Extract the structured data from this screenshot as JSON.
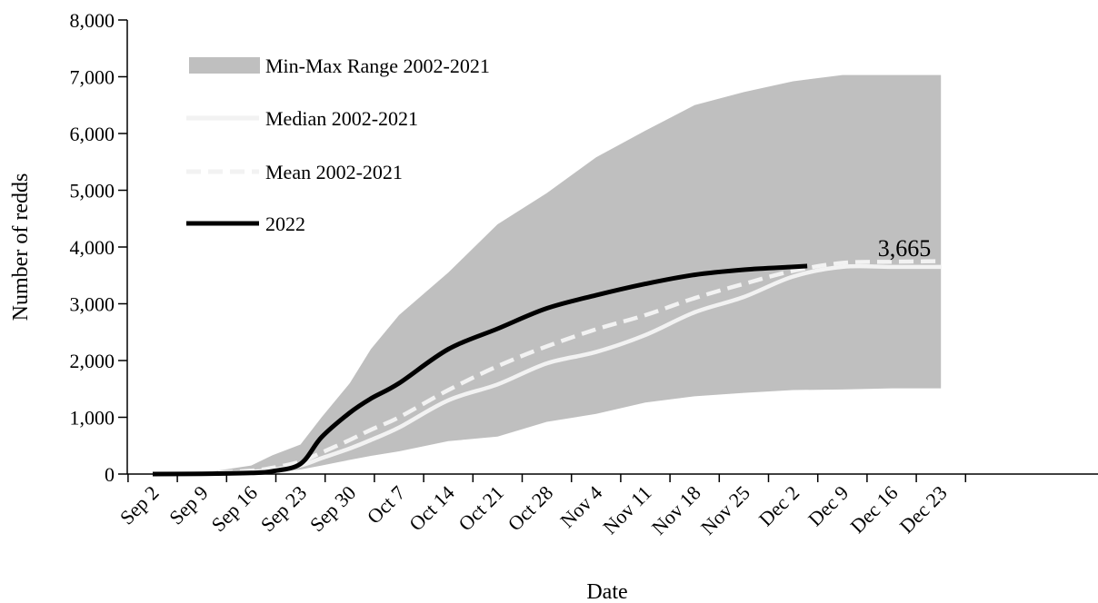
{
  "chart_data": {
    "type": "area",
    "title": "",
    "xlabel": "Date",
    "ylabel": "Number of redds",
    "ylim": [
      0,
      8000
    ],
    "yticks": [
      0,
      1000,
      2000,
      3000,
      4000,
      5000,
      6000,
      7000,
      8000
    ],
    "ytick_labels": [
      "0",
      "1,000",
      "2,000",
      "3,000",
      "4,000",
      "5,000",
      "6,000",
      "7,000",
      "8,000"
    ],
    "x_categories": [
      "Sep 2",
      "Sep 9",
      "Sep 16",
      "Sep 23",
      "Sep 30",
      "Oct 7",
      "Oct 14",
      "Oct 21",
      "Oct 28",
      "Nov 4",
      "Nov 11",
      "Nov 18",
      "Nov 25",
      "Dec 2",
      "Dec 9",
      "Dec 16",
      "Dec 23"
    ],
    "grid": false,
    "legend_position": "top-left",
    "series": [
      {
        "name": "Min-Max Range 2002-2021",
        "kind": "band",
        "color": "#bfbfbf",
        "x": [
          "Sep 2",
          "Sep 9",
          "Sep 16",
          "Sep 19",
          "Sep 23",
          "Sep 26",
          "Sep 30",
          "Oct 3",
          "Oct 7",
          "Oct 14",
          "Oct 21",
          "Oct 28",
          "Nov 4",
          "Nov 11",
          "Nov 18",
          "Nov 25",
          "Dec 2",
          "Dec 9",
          "Dec 16",
          "Dec 23"
        ],
        "lower": [
          0,
          0,
          10,
          30,
          80,
          150,
          250,
          320,
          400,
          580,
          660,
          920,
          1060,
          1260,
          1370,
          1430,
          1480,
          1490,
          1510,
          1510
        ],
        "upper": [
          0,
          20,
          150,
          330,
          520,
          1000,
          1600,
          2200,
          2800,
          3550,
          4400,
          4950,
          5580,
          6050,
          6500,
          6730,
          6920,
          7030,
          7030,
          7030
        ]
      },
      {
        "name": "Median 2002-2021",
        "kind": "line",
        "color": "#f2f2f2",
        "dash": "solid",
        "x": [
          "Sep 2",
          "Sep 9",
          "Sep 16",
          "Sep 19",
          "Sep 23",
          "Sep 26",
          "Sep 30",
          "Oct 3",
          "Oct 7",
          "Oct 14",
          "Oct 21",
          "Oct 28",
          "Nov 4",
          "Nov 11",
          "Nov 18",
          "Nov 25",
          "Dec 2",
          "Dec 9",
          "Dec 16",
          "Dec 23"
        ],
        "y": [
          0,
          10,
          40,
          80,
          150,
          280,
          450,
          600,
          820,
          1300,
          1580,
          1950,
          2150,
          2450,
          2850,
          3120,
          3480,
          3650,
          3650,
          3650
        ]
      },
      {
        "name": "Mean 2002-2021",
        "kind": "line",
        "color": "#f2f2f2",
        "dash": "dashed",
        "x": [
          "Sep 2",
          "Sep 9",
          "Sep 16",
          "Sep 19",
          "Sep 23",
          "Sep 26",
          "Sep 30",
          "Oct 3",
          "Oct 7",
          "Oct 14",
          "Oct 21",
          "Oct 28",
          "Nov 4",
          "Nov 11",
          "Nov 18",
          "Nov 25",
          "Dec 2",
          "Dec 9",
          "Dec 16",
          "Dec 23"
        ],
        "y": [
          0,
          15,
          60,
          110,
          220,
          380,
          600,
          780,
          1000,
          1480,
          1900,
          2250,
          2550,
          2800,
          3100,
          3350,
          3580,
          3720,
          3740,
          3750
        ]
      },
      {
        "name": "2022",
        "kind": "line",
        "color": "#000000",
        "dash": "solid",
        "x": [
          "Sep 2",
          "Sep 9",
          "Sep 16",
          "Sep 19",
          "Sep 23",
          "Sep 26",
          "Sep 30",
          "Oct 3",
          "Oct 7",
          "Oct 14",
          "Oct 21",
          "Oct 28",
          "Nov 4",
          "Nov 11",
          "Nov 18",
          "Nov 25",
          "Dec 2",
          "Dec 4"
        ],
        "y": [
          0,
          5,
          20,
          50,
          180,
          650,
          1080,
          1330,
          1600,
          2200,
          2560,
          2920,
          3150,
          3350,
          3510,
          3600,
          3650,
          3665
        ]
      }
    ],
    "annotations": [
      {
        "text": "3,665",
        "x": "Dec 4",
        "y": 3665
      }
    ]
  }
}
